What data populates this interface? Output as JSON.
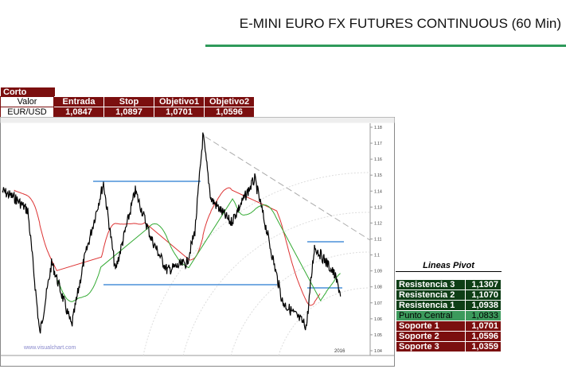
{
  "header": {
    "title": "E-MINI EURO FX FUTURES CONTINUOUS (60 Min)"
  },
  "trade_table": {
    "label": "Corto",
    "columns": [
      "Valor",
      "Entrada",
      "Stop",
      "Objetivo1",
      "Objetivo2"
    ],
    "row": [
      "EUR/USD",
      "1,0847",
      "1,0897",
      "1,0701",
      "1,0596"
    ]
  },
  "chart": {
    "y_labels": [
      "1.18",
      "1.17",
      "1.16",
      "1.15",
      "1.14",
      "1.13",
      "1.12",
      "1.11",
      "1.1",
      "1.09",
      "1.08",
      "1.07",
      "1.06",
      "1.05",
      "1.04"
    ],
    "watermark": "www.visualchart.com",
    "year": "2016"
  },
  "pivot": {
    "title": "Lineas Pivot",
    "rows": [
      [
        "Resistencia 3",
        "1,1307"
      ],
      [
        "Resistencia 2",
        "1,1070"
      ],
      [
        "Resistencia 1",
        "1,0938"
      ],
      [
        "Punto Central",
        "1,0833"
      ],
      [
        "Soporte 1",
        "1,0701"
      ],
      [
        "Soporte 2",
        "1,0596"
      ],
      [
        "Soporte 3",
        "1,0359"
      ]
    ]
  }
}
